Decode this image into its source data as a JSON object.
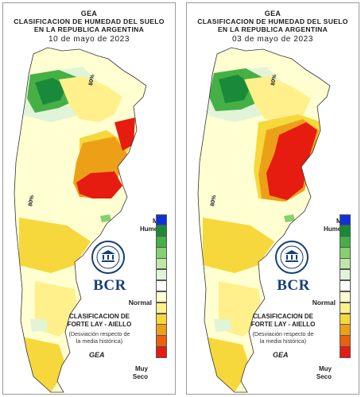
{
  "header": {
    "org": "GEA",
    "title_line1": "CLASIFICACION DE HUMEDAD DEL SUELO",
    "title_line2": "EN LA REPUBLICA ARGENTINA"
  },
  "panels": [
    {
      "date": "10 de mayo de 2023"
    },
    {
      "date": "03 de mayo de 2023"
    }
  ],
  "map_labels": {
    "percent": "80%"
  },
  "legend": {
    "top_label": "Muy\nHumedo",
    "mid_label": "Normal",
    "bottom_label": "Muy\nSeco",
    "colors": [
      "#1030d8",
      "#1a8a3a",
      "#45b045",
      "#86d070",
      "#bde8a8",
      "#e2f4d8",
      "#ffffff",
      "#ffffd2",
      "#fff08c",
      "#f6d83c",
      "#eca018",
      "#e86010",
      "#e61c10"
    ]
  },
  "classification": {
    "title_line1": "CLASIFICACION DE",
    "title_line2": "FORTE LAY - AIELLO",
    "desc_line1": "(Desviación respecto de",
    "desc_line2": "la media histórica)"
  },
  "brand": {
    "name": "BCR",
    "logo_text": "GEA"
  }
}
